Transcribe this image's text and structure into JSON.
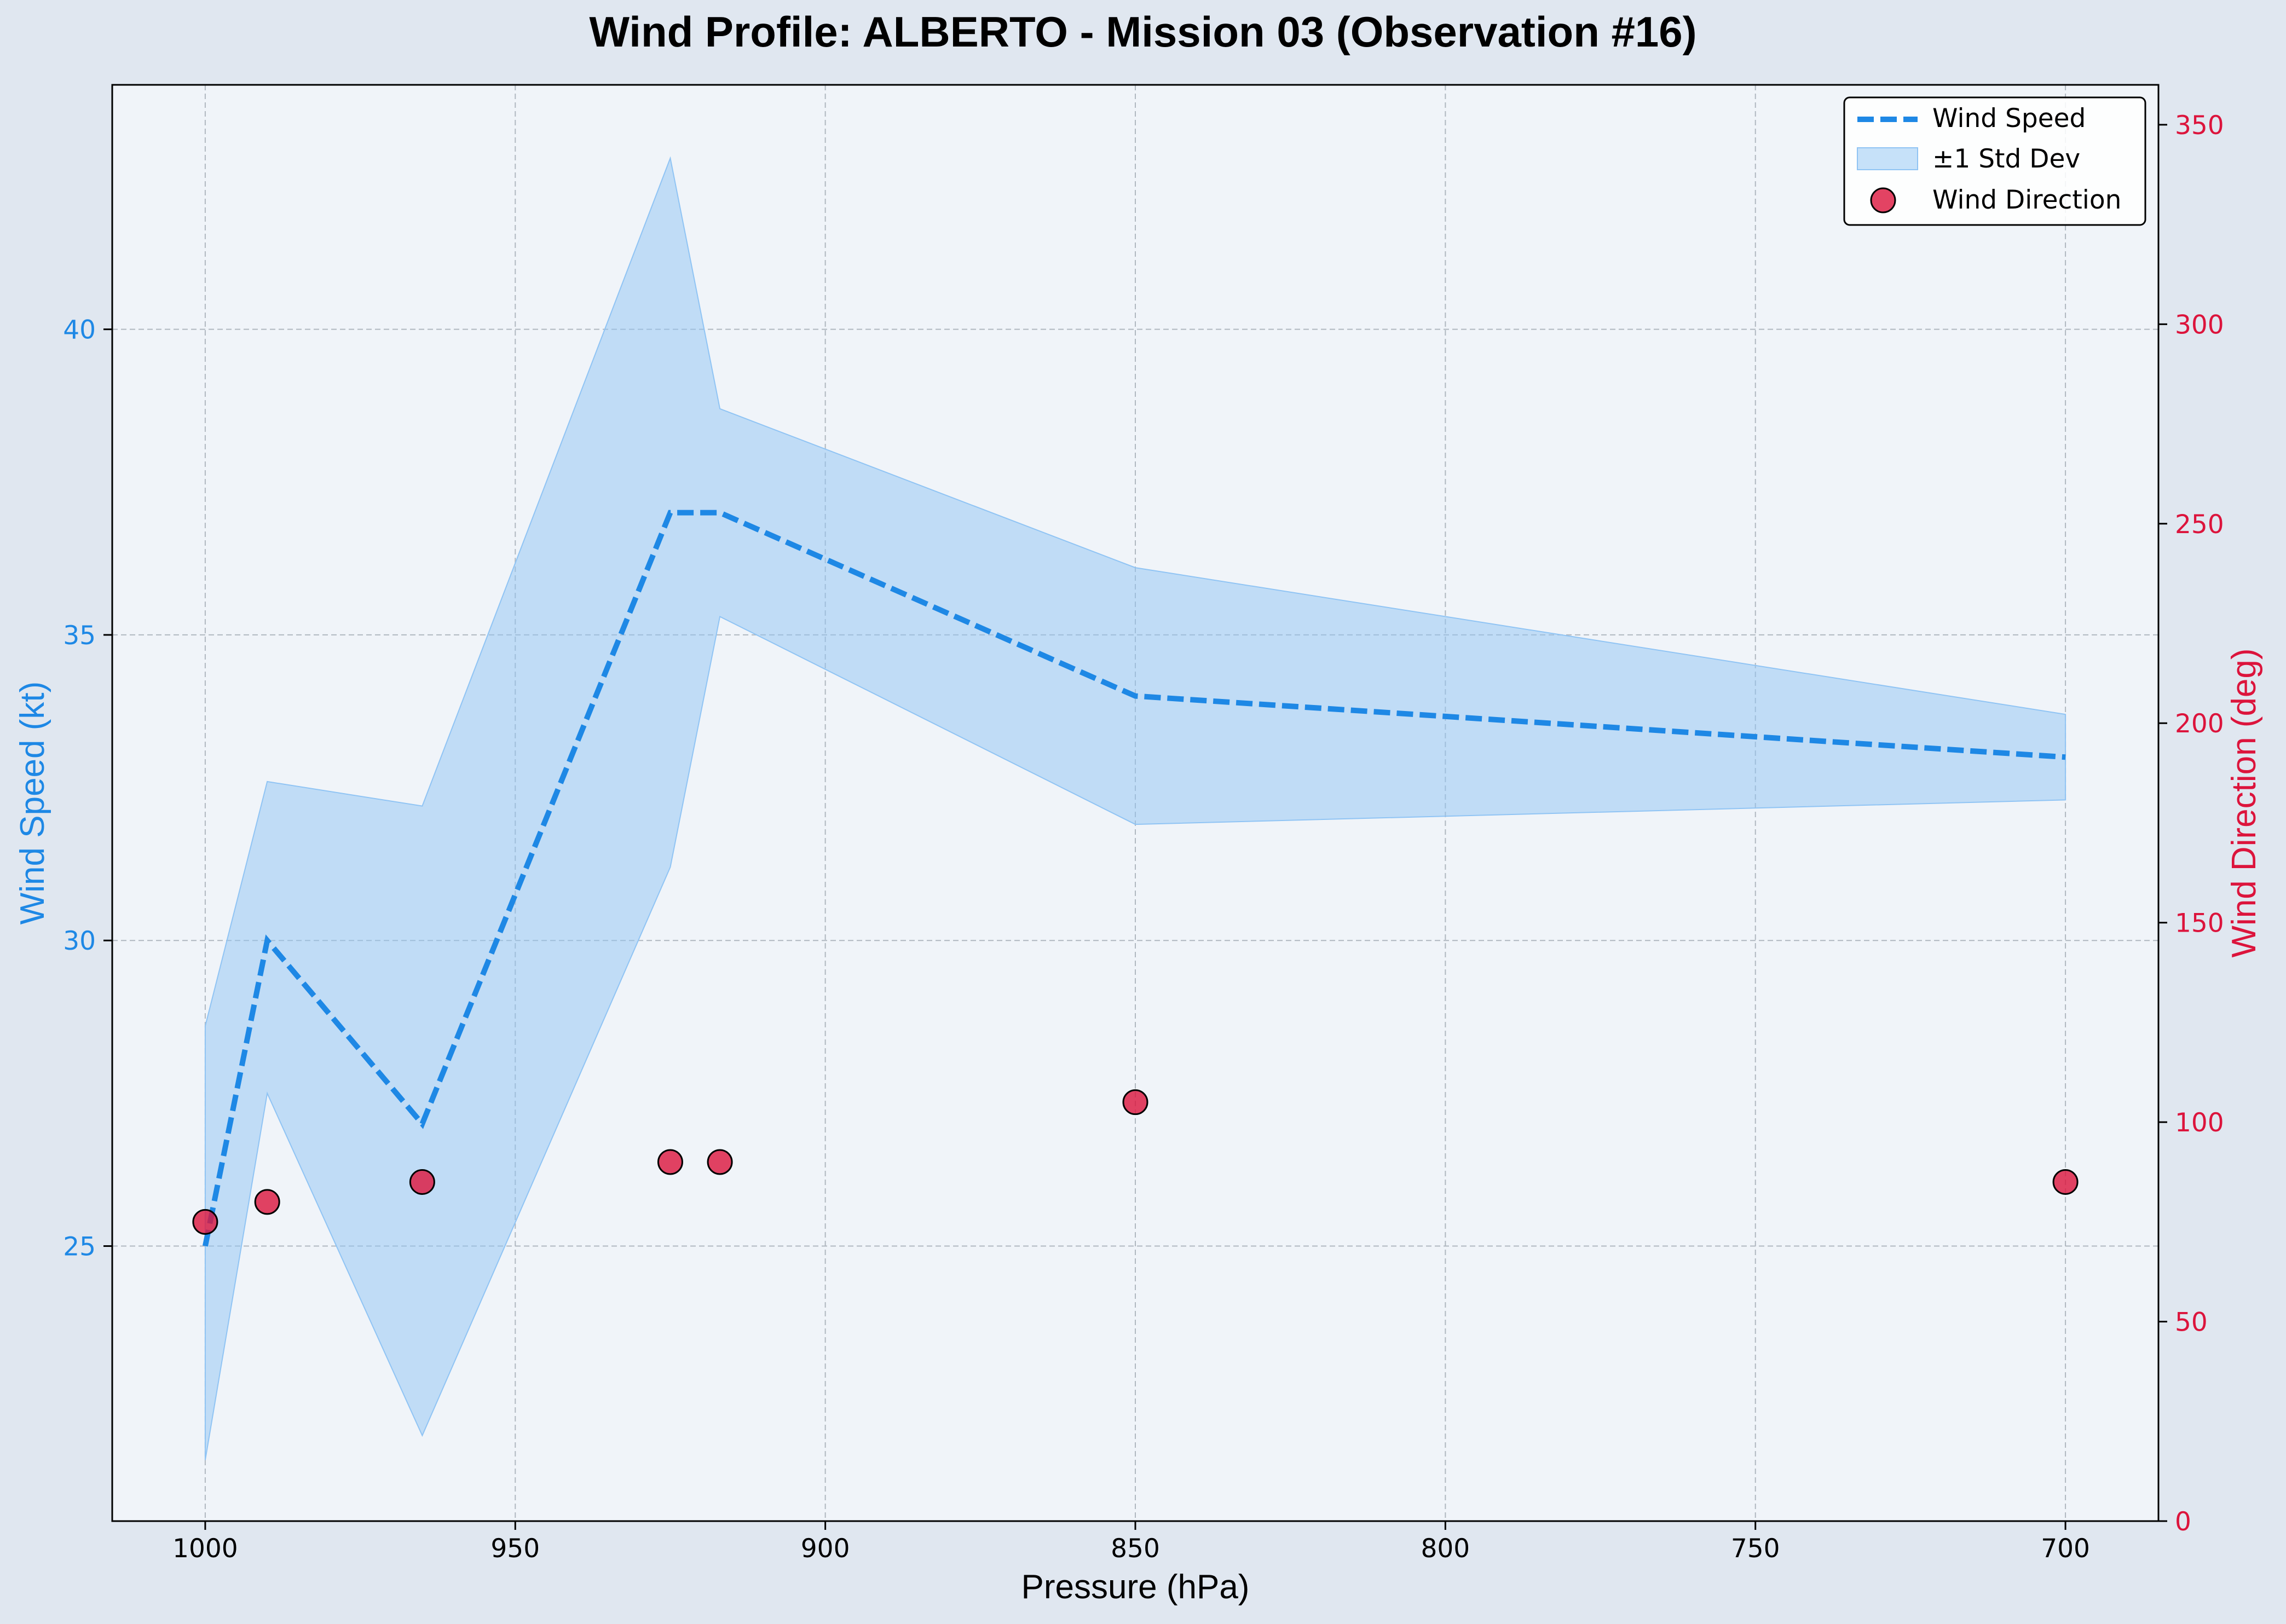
{
  "colors": {
    "speed": "#1e88e5",
    "band": "#90c4f4",
    "direction": "#dc143c",
    "grid": "#b0b8c0",
    "plot_bg": "#f0f4f9",
    "page_bg": "#e0e7f0"
  },
  "chart_data": {
    "type": "line",
    "title": "Wind Profile: ALBERTO - Mission 03 (Observation #16)",
    "xlabel": "Pressure (hPa)",
    "ylabel_left": "Wind Speed (kt)",
    "ylabel_right": "Wind Direction (deg)",
    "x_inverted": true,
    "xlim": [
      1015,
      685
    ],
    "ylim_left": [
      20.5,
      44
    ],
    "ylim_right": [
      0,
      360
    ],
    "xticks": [
      1000,
      950,
      900,
      850,
      800,
      750,
      700
    ],
    "yticks_left": [
      25,
      30,
      35,
      40
    ],
    "yticks_right": [
      0,
      50,
      100,
      150,
      200,
      250,
      300,
      350
    ],
    "grid": true,
    "legend_position": "top-right",
    "x": [
      1000,
      990,
      965,
      925,
      917,
      850,
      700
    ],
    "series": [
      {
        "name": "Wind Speed",
        "axis": "left",
        "style": "dashed-line",
        "values": [
          25.0,
          30.0,
          27.0,
          37.0,
          37.0,
          34.0,
          33.0
        ]
      },
      {
        "name": "±1 Std Dev",
        "axis": "left",
        "style": "band",
        "upper": [
          28.6,
          32.6,
          32.2,
          42.8,
          38.7,
          36.1,
          33.7
        ],
        "lower": [
          21.5,
          27.5,
          21.9,
          31.2,
          35.3,
          31.9,
          32.3
        ]
      },
      {
        "name": "Wind Direction",
        "axis": "right",
        "style": "scatter",
        "values": [
          75,
          80,
          85,
          90,
          90,
          105,
          85
        ]
      }
    ]
  }
}
